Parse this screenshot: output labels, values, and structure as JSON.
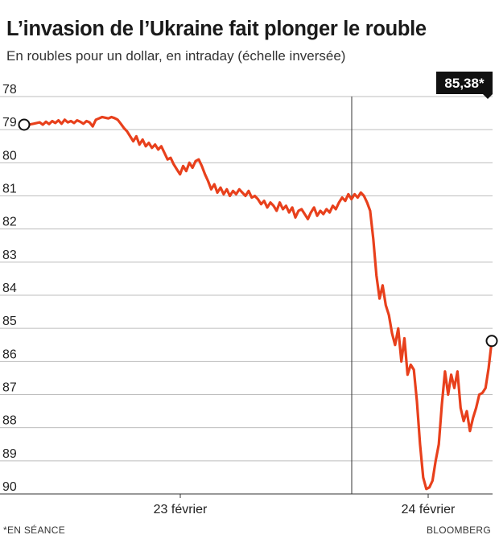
{
  "title": "L’invasion de l’Ukraine fait plonger le rouble",
  "subtitle": "En roubles pour un dollar, en intraday (échelle inversée)",
  "footnote": "*EN SÉANCE",
  "source": "BLOOMBERG",
  "colors": {
    "line": "#e8401c",
    "text": "#1a1a1a",
    "grid": "#bdbdbd",
    "callout_bg": "#111111",
    "callout_text": "#ffffff"
  },
  "chart_data": {
    "type": "line",
    "title": "L’invasion de l’Ukraine fait plonger le rouble",
    "ylabel": "",
    "xlabel": "",
    "y_axis": {
      "min": 78,
      "max": 90,
      "inverted": true,
      "ticks": [
        "78",
        "79",
        "80",
        "81",
        "82",
        "83",
        "84",
        "85",
        "86",
        "87",
        "88",
        "89",
        "90"
      ]
    },
    "x_axis": {
      "labels": [
        "23 février",
        "24 février"
      ],
      "day_divider_after": "23 février"
    },
    "grid": true,
    "callout": "85,38*",
    "series": [
      {
        "values": [
          78.85,
          78.88,
          78.84,
          78.82,
          78.8,
          78.78,
          78.85,
          78.76,
          78.83,
          78.74,
          78.8,
          78.72,
          78.82,
          78.7,
          78.78,
          78.74,
          78.8,
          78.72,
          78.76,
          78.82,
          78.74,
          78.78,
          78.9,
          78.7,
          78.66,
          78.62,
          78.64,
          78.66,
          78.62,
          78.65,
          78.7,
          78.82,
          78.95,
          79.05,
          79.2,
          79.35,
          79.2,
          79.45,
          79.3,
          79.5,
          79.4,
          79.55,
          79.45,
          79.6,
          79.5,
          79.7,
          79.9,
          79.85,
          80.05,
          80.2,
          80.35,
          80.1,
          80.25,
          80.0,
          80.15,
          79.95,
          79.9,
          80.1,
          80.35,
          80.55,
          80.8,
          80.65,
          80.9,
          80.75,
          80.95,
          80.8,
          81.0,
          80.85,
          80.95,
          80.8,
          80.9,
          81.0,
          80.85,
          81.05,
          81.0,
          81.1,
          81.25,
          81.15,
          81.35,
          81.2,
          81.3,
          81.45,
          81.2,
          81.4,
          81.3,
          81.5,
          81.35,
          81.65,
          81.45,
          81.4,
          81.55,
          81.7,
          81.5,
          81.35,
          81.6,
          81.45,
          81.55,
          81.4,
          81.5,
          81.3,
          81.4,
          81.2,
          81.05,
          81.15,
          80.95,
          81.1,
          80.95,
          81.05,
          80.9,
          81.0,
          81.2,
          81.45,
          82.3,
          83.4,
          84.1,
          83.7,
          84.3,
          84.6,
          85.15,
          85.5,
          85.0,
          86.0,
          85.3,
          86.4,
          86.1,
          86.25,
          87.2,
          88.5,
          89.5,
          89.85,
          89.8,
          89.6,
          89.0,
          88.5,
          87.3,
          86.3,
          87.0,
          86.4,
          86.8,
          86.3,
          87.4,
          87.8,
          87.5,
          88.1,
          87.7,
          87.4,
          87.0,
          86.95,
          86.8,
          86.2,
          85.38
        ]
      }
    ]
  }
}
